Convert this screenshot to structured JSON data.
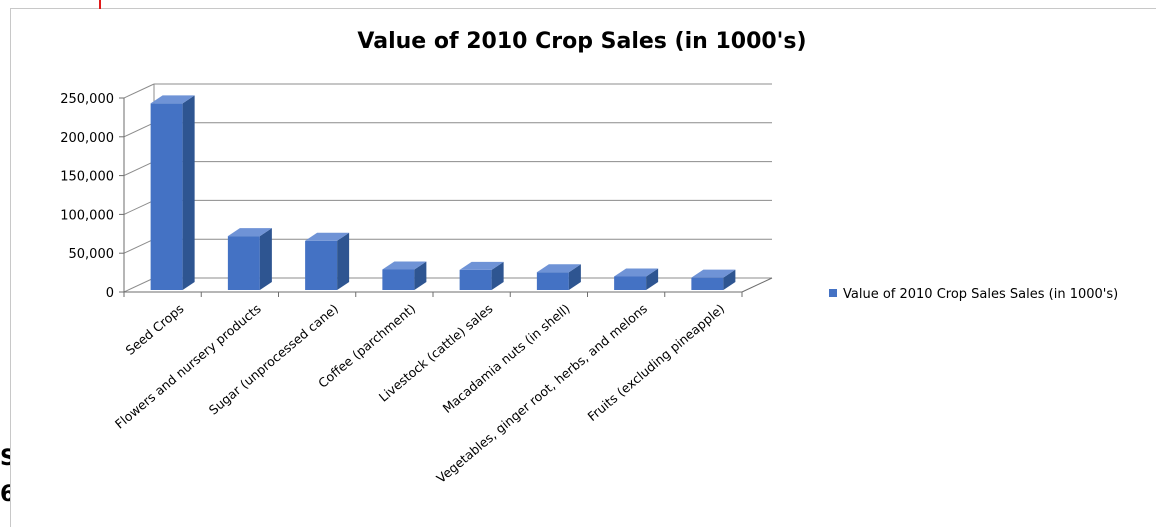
{
  "chart_data": {
    "type": "bar",
    "title": "Value of 2010 Crop Sales (in 1000's)",
    "categories": [
      "Seed Crops",
      "Flowers and nursery products",
      "Sugar (unprocessed cane)",
      "Coffee (parchment)",
      "Livestock (cattle) sales",
      "Macadamia nuts (in shell)",
      "Vegetables, ginger root, herbs, and melons",
      "Fruits (excluding pineapple)"
    ],
    "series": [
      {
        "name": "Value of 2010 Crop Sales Sales (in 1000's)",
        "values": [
          243000,
          72000,
          66000,
          29000,
          28500,
          25500,
          20000,
          18500
        ]
      }
    ],
    "yticks": [
      "0",
      "50,000",
      "100,000",
      "150,000",
      "200,000",
      "250,000"
    ],
    "ylim": [
      0,
      250000
    ],
    "grid": true,
    "legend": "right",
    "color": "#4472c4"
  },
  "fragments": {
    "top": "S",
    "bottom": "6"
  }
}
